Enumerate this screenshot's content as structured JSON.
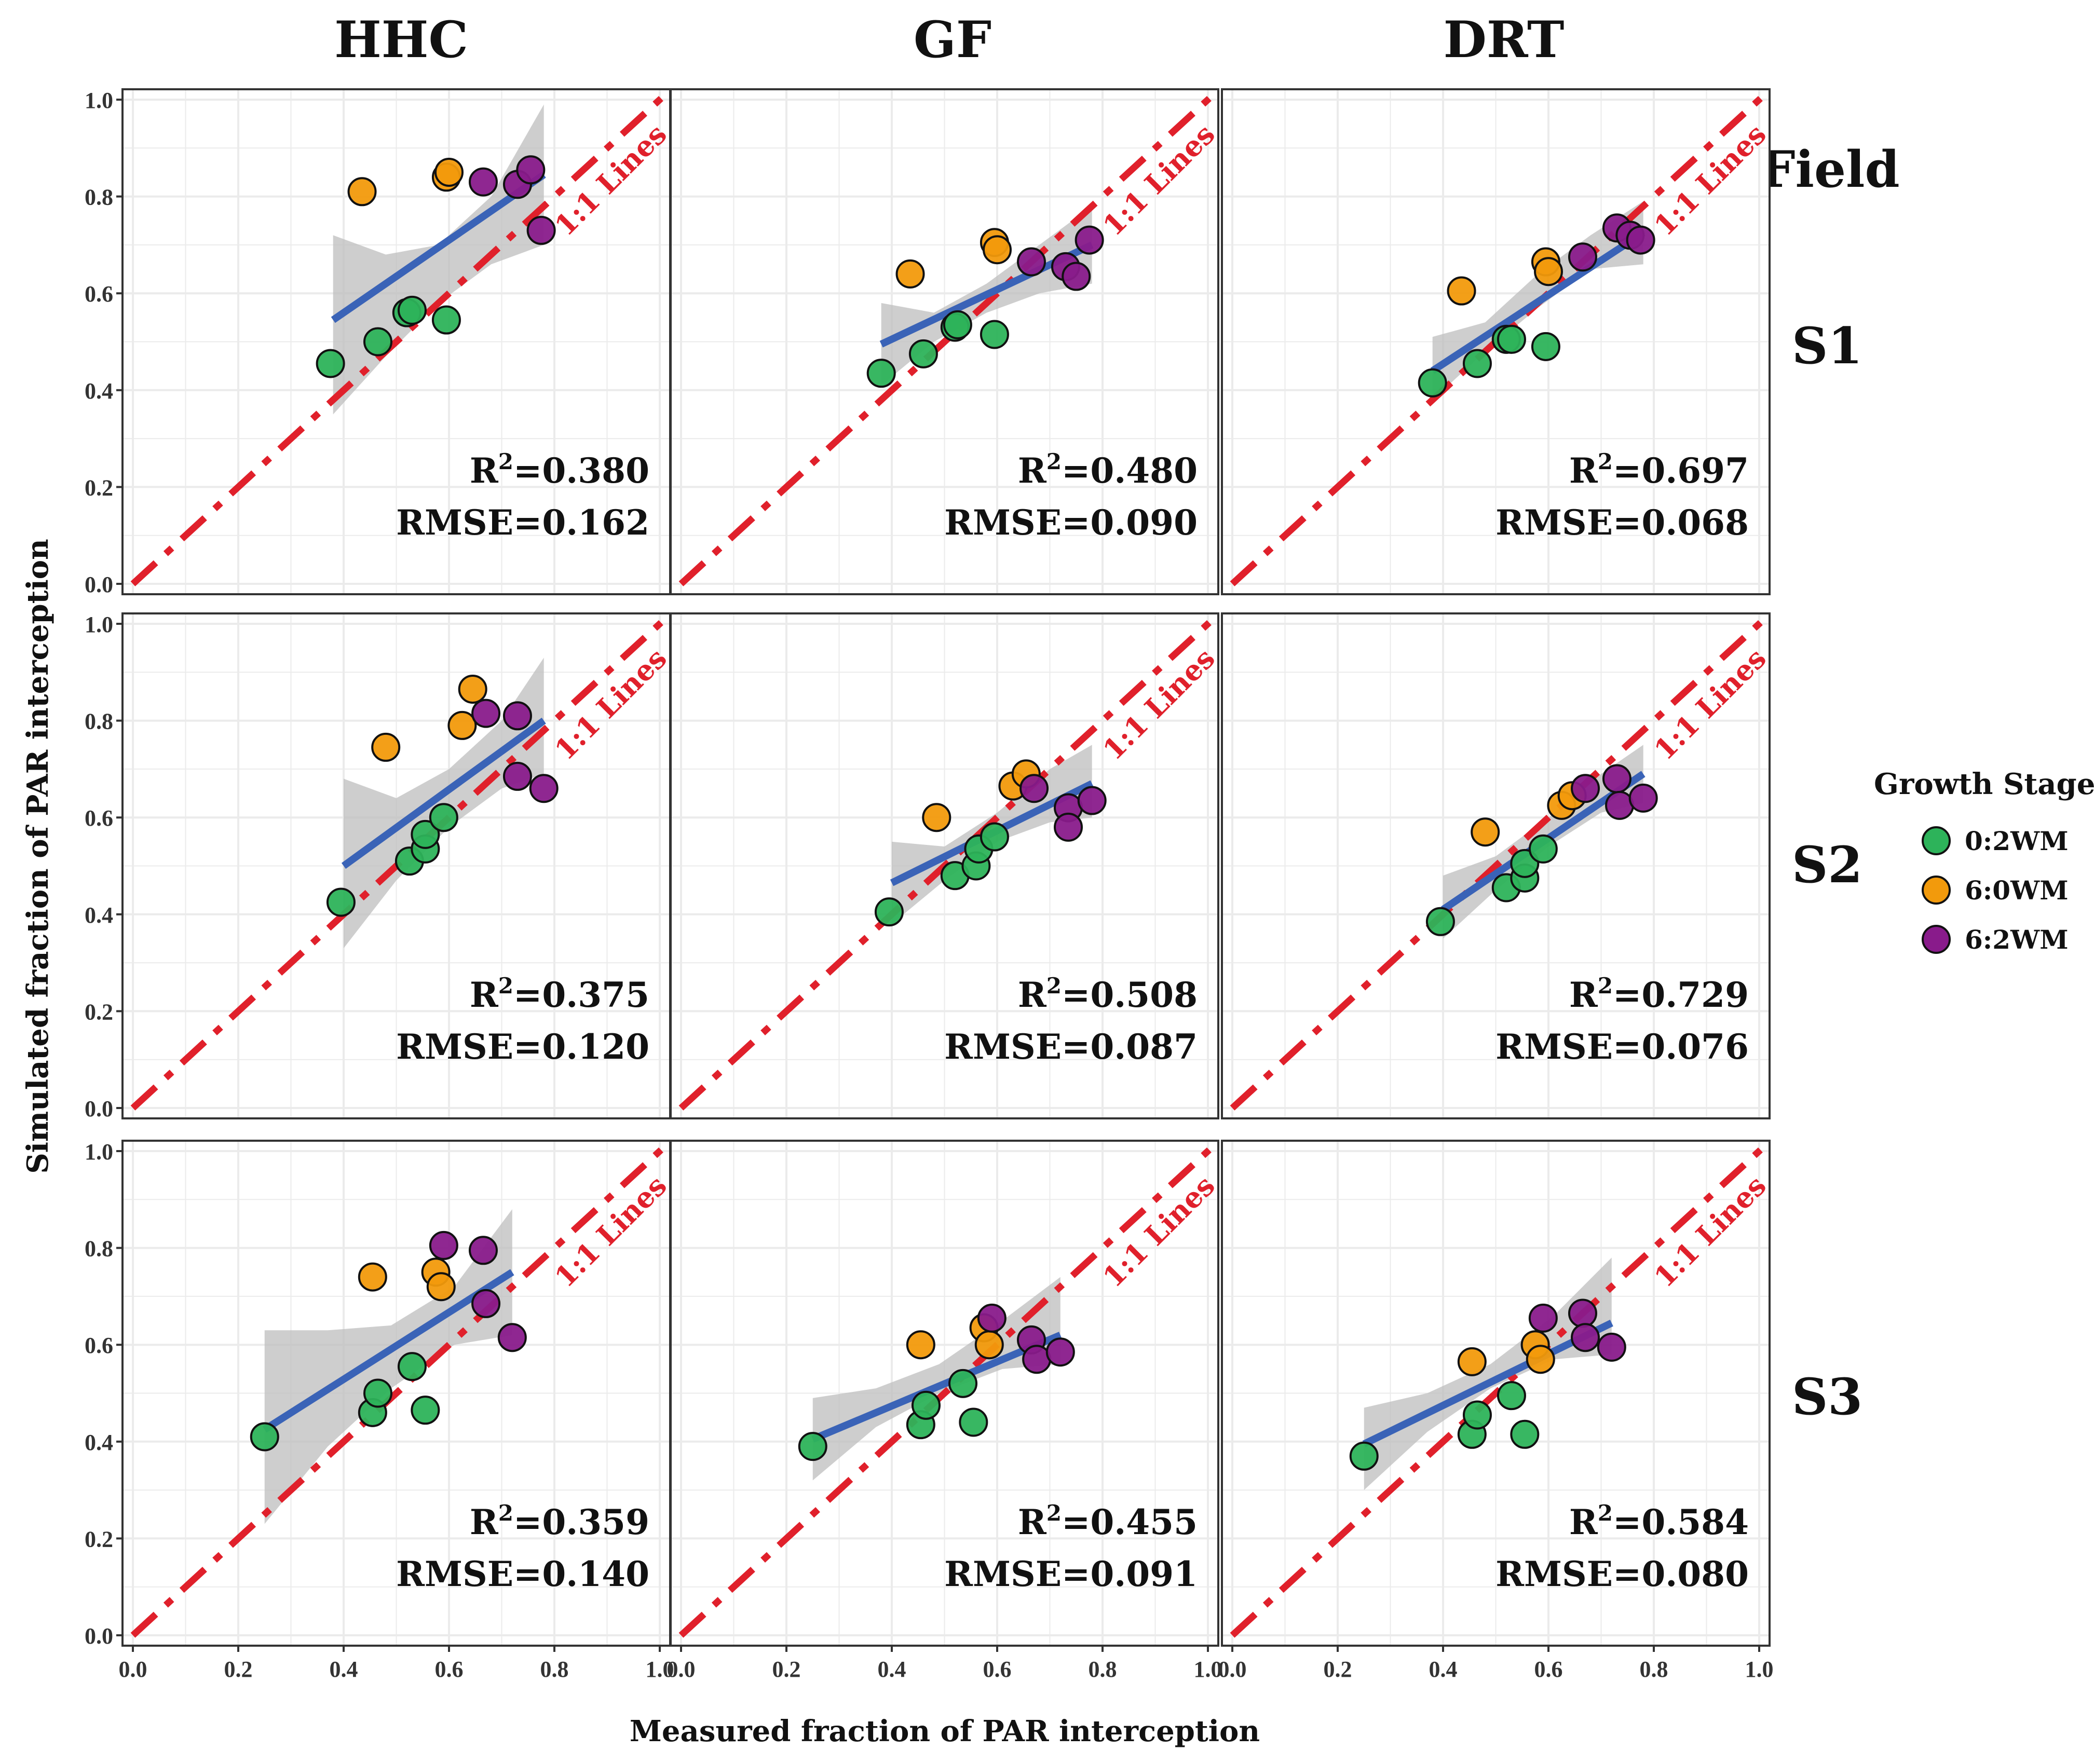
{
  "chart_data": {
    "type": "scatter",
    "xlabel": "Measured fraction of PAR interception",
    "ylabel": "Simulated fraction of PAR interception",
    "xlim": [
      0,
      1
    ],
    "ylim": [
      0,
      1
    ],
    "x_ticks": [
      "0.0",
      "0.2",
      "0.4",
      "0.6",
      "0.8",
      "1.0"
    ],
    "y_ticks": [
      "0.0",
      "0.2",
      "0.4",
      "0.6",
      "0.8",
      "1.0"
    ],
    "column_labels": [
      "HHC",
      "GF",
      "DRT"
    ],
    "row_labels": [
      "S1",
      "S2",
      "S3"
    ],
    "field_label": "Field",
    "reference_line_label": "1:1 Lines",
    "r2_prefix": "R",
    "r2_exponent": "2",
    "legend": {
      "title": "Growth Stage",
      "position": "right",
      "items": [
        {
          "label": "0:2WM",
          "color": "#2db35a"
        },
        {
          "label": "6:0WM",
          "color": "#f29a0c"
        },
        {
          "label": "6:2WM",
          "color": "#891b8b"
        }
      ]
    },
    "colors": {
      "fit_line": "#3a63b7",
      "ref_line": "#e0202b",
      "ci_band": "#bdbdbd",
      "grid": "#ebebeb"
    },
    "panels": [
      {
        "col": 0,
        "row": 0,
        "r2": "=0.380",
        "rmse": "RMSE=0.162",
        "fit": {
          "x": [
            0.38,
            0.78
          ],
          "y": [
            0.545,
            0.845
          ]
        },
        "ci": {
          "x": [
            0.38,
            0.48,
            0.58,
            0.68,
            0.78
          ],
          "lo": [
            0.35,
            0.47,
            0.58,
            0.66,
            0.7
          ],
          "hi": [
            0.72,
            0.68,
            0.7,
            0.8,
            0.99
          ]
        },
        "points": [
          {
            "x": 0.375,
            "y": 0.455,
            "g": 0
          },
          {
            "x": 0.465,
            "y": 0.5,
            "g": 0
          },
          {
            "x": 0.52,
            "y": 0.56,
            "g": 0
          },
          {
            "x": 0.53,
            "y": 0.565,
            "g": 0
          },
          {
            "x": 0.595,
            "y": 0.545,
            "g": 0
          },
          {
            "x": 0.435,
            "y": 0.81,
            "g": 1
          },
          {
            "x": 0.595,
            "y": 0.84,
            "g": 1
          },
          {
            "x": 0.6,
            "y": 0.85,
            "g": 1
          },
          {
            "x": 0.665,
            "y": 0.83,
            "g": 2
          },
          {
            "x": 0.73,
            "y": 0.825,
            "g": 2
          },
          {
            "x": 0.755,
            "y": 0.855,
            "g": 2
          },
          {
            "x": 0.775,
            "y": 0.73,
            "g": 2
          }
        ]
      },
      {
        "col": 1,
        "row": 0,
        "r2": "=0.480",
        "rmse": "RMSE=0.090",
        "fit": {
          "x": [
            0.38,
            0.78
          ],
          "y": [
            0.495,
            0.7
          ]
        },
        "ci": {
          "x": [
            0.38,
            0.48,
            0.58,
            0.68,
            0.78
          ],
          "lo": [
            0.41,
            0.5,
            0.56,
            0.6,
            0.62
          ],
          "hi": [
            0.58,
            0.56,
            0.62,
            0.7,
            0.78
          ]
        },
        "points": [
          {
            "x": 0.38,
            "y": 0.435,
            "g": 0
          },
          {
            "x": 0.46,
            "y": 0.475,
            "g": 0
          },
          {
            "x": 0.52,
            "y": 0.53,
            "g": 0
          },
          {
            "x": 0.525,
            "y": 0.535,
            "g": 0
          },
          {
            "x": 0.595,
            "y": 0.515,
            "g": 0
          },
          {
            "x": 0.435,
            "y": 0.64,
            "g": 1
          },
          {
            "x": 0.595,
            "y": 0.705,
            "g": 1
          },
          {
            "x": 0.6,
            "y": 0.69,
            "g": 1
          },
          {
            "x": 0.665,
            "y": 0.665,
            "g": 2
          },
          {
            "x": 0.73,
            "y": 0.655,
            "g": 2
          },
          {
            "x": 0.75,
            "y": 0.635,
            "g": 2
          },
          {
            "x": 0.775,
            "y": 0.71,
            "g": 2
          }
        ]
      },
      {
        "col": 2,
        "row": 0,
        "r2": "=0.697",
        "rmse": "RMSE=0.068",
        "fit": {
          "x": [
            0.38,
            0.78
          ],
          "y": [
            0.44,
            0.725
          ]
        },
        "ci": {
          "x": [
            0.38,
            0.48,
            0.58,
            0.68,
            0.78
          ],
          "lo": [
            0.38,
            0.48,
            0.57,
            0.65,
            0.66
          ],
          "hi": [
            0.51,
            0.54,
            0.64,
            0.72,
            0.79
          ]
        },
        "points": [
          {
            "x": 0.38,
            "y": 0.415,
            "g": 0
          },
          {
            "x": 0.465,
            "y": 0.455,
            "g": 0
          },
          {
            "x": 0.52,
            "y": 0.505,
            "g": 0
          },
          {
            "x": 0.53,
            "y": 0.505,
            "g": 0
          },
          {
            "x": 0.595,
            "y": 0.49,
            "g": 0
          },
          {
            "x": 0.435,
            "y": 0.605,
            "g": 1
          },
          {
            "x": 0.595,
            "y": 0.665,
            "g": 1
          },
          {
            "x": 0.6,
            "y": 0.645,
            "g": 1
          },
          {
            "x": 0.665,
            "y": 0.675,
            "g": 2
          },
          {
            "x": 0.73,
            "y": 0.735,
            "g": 2
          },
          {
            "x": 0.755,
            "y": 0.72,
            "g": 2
          },
          {
            "x": 0.775,
            "y": 0.71,
            "g": 2
          }
        ]
      },
      {
        "col": 0,
        "row": 1,
        "r2": "=0.375",
        "rmse": "RMSE=0.120",
        "fit": {
          "x": [
            0.4,
            0.78
          ],
          "y": [
            0.5,
            0.8
          ]
        },
        "ci": {
          "x": [
            0.4,
            0.5,
            0.6,
            0.7,
            0.78
          ],
          "lo": [
            0.33,
            0.47,
            0.58,
            0.66,
            0.69
          ],
          "hi": [
            0.68,
            0.64,
            0.7,
            0.8,
            0.93
          ]
        },
        "points": [
          {
            "x": 0.395,
            "y": 0.425,
            "g": 0
          },
          {
            "x": 0.525,
            "y": 0.51,
            "g": 0
          },
          {
            "x": 0.555,
            "y": 0.535,
            "g": 0
          },
          {
            "x": 0.555,
            "y": 0.565,
            "g": 0
          },
          {
            "x": 0.59,
            "y": 0.6,
            "g": 0
          },
          {
            "x": 0.48,
            "y": 0.745,
            "g": 1
          },
          {
            "x": 0.625,
            "y": 0.79,
            "g": 1
          },
          {
            "x": 0.645,
            "y": 0.865,
            "g": 1
          },
          {
            "x": 0.67,
            "y": 0.815,
            "g": 2
          },
          {
            "x": 0.73,
            "y": 0.81,
            "g": 2
          },
          {
            "x": 0.73,
            "y": 0.685,
            "g": 2
          },
          {
            "x": 0.78,
            "y": 0.66,
            "g": 2
          }
        ]
      },
      {
        "col": 1,
        "row": 1,
        "r2": "=0.508",
        "rmse": "RMSE=0.087",
        "fit": {
          "x": [
            0.4,
            0.78
          ],
          "y": [
            0.465,
            0.67
          ]
        },
        "ci": {
          "x": [
            0.4,
            0.5,
            0.6,
            0.7,
            0.78
          ],
          "lo": [
            0.38,
            0.47,
            0.55,
            0.59,
            0.6
          ],
          "hi": [
            0.55,
            0.54,
            0.61,
            0.7,
            0.75
          ]
        },
        "points": [
          {
            "x": 0.395,
            "y": 0.405,
            "g": 0
          },
          {
            "x": 0.52,
            "y": 0.48,
            "g": 0
          },
          {
            "x": 0.56,
            "y": 0.5,
            "g": 0
          },
          {
            "x": 0.565,
            "y": 0.535,
            "g": 0
          },
          {
            "x": 0.595,
            "y": 0.56,
            "g": 0
          },
          {
            "x": 0.485,
            "y": 0.6,
            "g": 1
          },
          {
            "x": 0.63,
            "y": 0.665,
            "g": 1
          },
          {
            "x": 0.655,
            "y": 0.69,
            "g": 1
          },
          {
            "x": 0.67,
            "y": 0.66,
            "g": 2
          },
          {
            "x": 0.735,
            "y": 0.62,
            "g": 2
          },
          {
            "x": 0.735,
            "y": 0.58,
            "g": 2
          },
          {
            "x": 0.78,
            "y": 0.635,
            "g": 2
          }
        ]
      },
      {
        "col": 2,
        "row": 1,
        "r2": "=0.729",
        "rmse": "RMSE=0.076",
        "fit": {
          "x": [
            0.4,
            0.78
          ],
          "y": [
            0.41,
            0.69
          ]
        },
        "ci": {
          "x": [
            0.4,
            0.5,
            0.6,
            0.7,
            0.78
          ],
          "lo": [
            0.35,
            0.45,
            0.54,
            0.61,
            0.63
          ],
          "hi": [
            0.48,
            0.52,
            0.6,
            0.69,
            0.75
          ]
        },
        "points": [
          {
            "x": 0.395,
            "y": 0.385,
            "g": 0
          },
          {
            "x": 0.52,
            "y": 0.455,
            "g": 0
          },
          {
            "x": 0.555,
            "y": 0.475,
            "g": 0
          },
          {
            "x": 0.555,
            "y": 0.505,
            "g": 0
          },
          {
            "x": 0.59,
            "y": 0.535,
            "g": 0
          },
          {
            "x": 0.48,
            "y": 0.57,
            "g": 1
          },
          {
            "x": 0.625,
            "y": 0.625,
            "g": 1
          },
          {
            "x": 0.645,
            "y": 0.645,
            "g": 1
          },
          {
            "x": 0.67,
            "y": 0.66,
            "g": 2
          },
          {
            "x": 0.73,
            "y": 0.68,
            "g": 2
          },
          {
            "x": 0.735,
            "y": 0.625,
            "g": 2
          },
          {
            "x": 0.78,
            "y": 0.64,
            "g": 2
          }
        ]
      },
      {
        "col": 0,
        "row": 2,
        "r2": "=0.359",
        "rmse": "RMSE=0.140",
        "fit": {
          "x": [
            0.25,
            0.72
          ],
          "y": [
            0.425,
            0.75
          ]
        },
        "ci": {
          "x": [
            0.25,
            0.37,
            0.49,
            0.61,
            0.72
          ],
          "lo": [
            0.23,
            0.39,
            0.51,
            0.6,
            0.62
          ],
          "hi": [
            0.63,
            0.63,
            0.64,
            0.72,
            0.88
          ]
        },
        "points": [
          {
            "x": 0.25,
            "y": 0.41,
            "g": 0
          },
          {
            "x": 0.455,
            "y": 0.46,
            "g": 0
          },
          {
            "x": 0.465,
            "y": 0.5,
            "g": 0
          },
          {
            "x": 0.53,
            "y": 0.555,
            "g": 0
          },
          {
            "x": 0.555,
            "y": 0.465,
            "g": 0
          },
          {
            "x": 0.455,
            "y": 0.74,
            "g": 1
          },
          {
            "x": 0.575,
            "y": 0.75,
            "g": 1
          },
          {
            "x": 0.585,
            "y": 0.72,
            "g": 1
          },
          {
            "x": 0.59,
            "y": 0.805,
            "g": 2
          },
          {
            "x": 0.665,
            "y": 0.795,
            "g": 2
          },
          {
            "x": 0.67,
            "y": 0.685,
            "g": 2
          },
          {
            "x": 0.72,
            "y": 0.615,
            "g": 2
          }
        ]
      },
      {
        "col": 1,
        "row": 2,
        "r2": "=0.455",
        "rmse": "RMSE=0.091",
        "fit": {
          "x": [
            0.25,
            0.72
          ],
          "y": [
            0.405,
            0.62
          ]
        },
        "ci": {
          "x": [
            0.25,
            0.37,
            0.49,
            0.61,
            0.72
          ],
          "lo": [
            0.32,
            0.43,
            0.5,
            0.55,
            0.56
          ],
          "hi": [
            0.49,
            0.51,
            0.56,
            0.65,
            0.74
          ]
        },
        "points": [
          {
            "x": 0.25,
            "y": 0.39,
            "g": 0
          },
          {
            "x": 0.455,
            "y": 0.435,
            "g": 0
          },
          {
            "x": 0.465,
            "y": 0.475,
            "g": 0
          },
          {
            "x": 0.535,
            "y": 0.52,
            "g": 0
          },
          {
            "x": 0.555,
            "y": 0.44,
            "g": 0
          },
          {
            "x": 0.455,
            "y": 0.6,
            "g": 1
          },
          {
            "x": 0.575,
            "y": 0.635,
            "g": 1
          },
          {
            "x": 0.585,
            "y": 0.6,
            "g": 1
          },
          {
            "x": 0.59,
            "y": 0.655,
            "g": 2
          },
          {
            "x": 0.665,
            "y": 0.61,
            "g": 2
          },
          {
            "x": 0.675,
            "y": 0.57,
            "g": 2
          },
          {
            "x": 0.72,
            "y": 0.585,
            "g": 2
          }
        ]
      },
      {
        "col": 2,
        "row": 2,
        "r2": "=0.584",
        "rmse": "RMSE=0.080",
        "fit": {
          "x": [
            0.25,
            0.72
          ],
          "y": [
            0.395,
            0.645
          ]
        },
        "ci": {
          "x": [
            0.25,
            0.37,
            0.49,
            0.61,
            0.72
          ],
          "lo": [
            0.3,
            0.42,
            0.51,
            0.57,
            0.58
          ],
          "hi": [
            0.47,
            0.5,
            0.56,
            0.66,
            0.78
          ]
        },
        "points": [
          {
            "x": 0.25,
            "y": 0.37,
            "g": 0
          },
          {
            "x": 0.455,
            "y": 0.415,
            "g": 0
          },
          {
            "x": 0.465,
            "y": 0.455,
            "g": 0
          },
          {
            "x": 0.53,
            "y": 0.495,
            "g": 0
          },
          {
            "x": 0.555,
            "y": 0.415,
            "g": 0
          },
          {
            "x": 0.455,
            "y": 0.565,
            "g": 1
          },
          {
            "x": 0.575,
            "y": 0.6,
            "g": 1
          },
          {
            "x": 0.585,
            "y": 0.57,
            "g": 1
          },
          {
            "x": 0.59,
            "y": 0.655,
            "g": 2
          },
          {
            "x": 0.665,
            "y": 0.665,
            "g": 2
          },
          {
            "x": 0.67,
            "y": 0.615,
            "g": 2
          },
          {
            "x": 0.72,
            "y": 0.595,
            "g": 2
          }
        ]
      }
    ]
  }
}
